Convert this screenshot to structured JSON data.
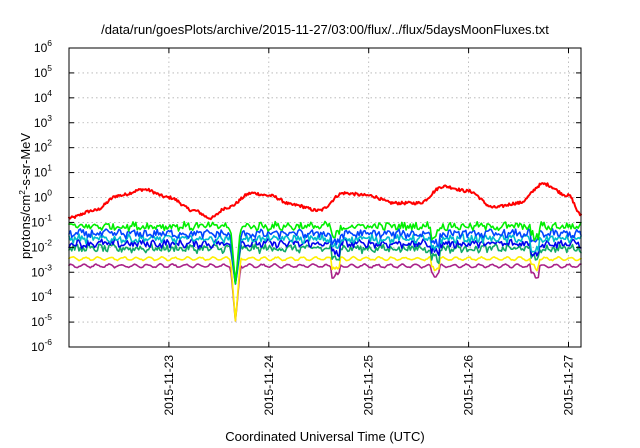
{
  "chart_data": {
    "type": "line",
    "title": "/data/run/goesPlots/archive/2015-11-27/03:00/flux/../flux/5daysMoonFluxes.txt",
    "xlabel": "Coordinated Universal Time (UTC)",
    "ylabel": {
      "prefix": "protons/cm",
      "sup": "2",
      "suffix": "-s-sr-MeV"
    },
    "yscale": "log",
    "ylim": [
      1e-06,
      1000000.0
    ],
    "yticks": [
      {
        "base": "10",
        "exp": "-6",
        "value": 1e-06
      },
      {
        "base": "10",
        "exp": "-5",
        "value": 1e-05
      },
      {
        "base": "10",
        "exp": "-4",
        "value": 0.0001
      },
      {
        "base": "10",
        "exp": "-3",
        "value": 0.001
      },
      {
        "base": "10",
        "exp": "-2",
        "value": 0.01
      },
      {
        "base": "10",
        "exp": "-1",
        "value": 0.1
      },
      {
        "base": "10",
        "exp": "0",
        "value": 1
      },
      {
        "base": "10",
        "exp": "1",
        "value": 10
      },
      {
        "base": "10",
        "exp": "2",
        "value": 100
      },
      {
        "base": "10",
        "exp": "3",
        "value": 1000
      },
      {
        "base": "10",
        "exp": "4",
        "value": 10000
      },
      {
        "base": "10",
        "exp": "5",
        "value": 100000
      },
      {
        "base": "10",
        "exp": "6",
        "value": 1000000
      }
    ],
    "xlim": [
      "2015-11-22 00:00",
      "2015-11-27 03:00"
    ],
    "xticks": [
      {
        "label": "2015-11-23",
        "value": "2015-11-23 00:00"
      },
      {
        "label": "2015-11-24",
        "value": "2015-11-24 00:00"
      },
      {
        "label": "2015-11-25",
        "value": "2015-11-25 00:00"
      },
      {
        "label": "2015-11-26",
        "value": "2015-11-26 00:00"
      },
      {
        "label": "2015-11-27",
        "value": "2015-11-27 00:00"
      }
    ],
    "grid": true,
    "legend": "none",
    "series": [
      {
        "color": "#ff0000",
        "points": [
          [
            "2015-11-22 00:00",
            0.15
          ],
          [
            "2015-11-22 06:00",
            0.3
          ],
          [
            "2015-11-22 12:00",
            1.2
          ],
          [
            "2015-11-22 18:00",
            2.1
          ],
          [
            "2015-11-23 00:00",
            1.0
          ],
          [
            "2015-11-23 06:00",
            0.3
          ],
          [
            "2015-11-23 10:00",
            0.15
          ],
          [
            "2015-11-23 14:00",
            0.4
          ],
          [
            "2015-11-23 20:00",
            1.5
          ],
          [
            "2015-11-24 00:00",
            1.2
          ],
          [
            "2015-11-24 06:00",
            0.5
          ],
          [
            "2015-11-24 12:00",
            0.3
          ],
          [
            "2015-11-24 18:00",
            1.5
          ],
          [
            "2015-11-25 00:00",
            1.2
          ],
          [
            "2015-11-25 06:00",
            0.6
          ],
          [
            "2015-11-25 12:00",
            0.6
          ],
          [
            "2015-11-25 18:00",
            2.8
          ],
          [
            "2015-11-26 00:00",
            1.8
          ],
          [
            "2015-11-26 06:00",
            0.4
          ],
          [
            "2015-11-26 12:00",
            0.6
          ],
          [
            "2015-11-26 18:00",
            3.5
          ],
          [
            "2015-11-27 00:00",
            1.2
          ],
          [
            "2015-11-27 03:00",
            0.2
          ]
        ]
      },
      {
        "color": "#00ee00",
        "level": 0.07
      },
      {
        "color": "#0044ff",
        "level": 0.035
      },
      {
        "color": "#00bbcc",
        "level": 0.022
      },
      {
        "color": "#0000ee",
        "level": 0.014
      },
      {
        "color": "#11aa66",
        "level": 0.009
      },
      {
        "color": "#ffee00",
        "level": 0.0035
      },
      {
        "color": "#aa2288",
        "level": 0.0018
      }
    ],
    "dip": {
      "time": "2015-11-23 16:00",
      "min": 1e-05
    }
  }
}
